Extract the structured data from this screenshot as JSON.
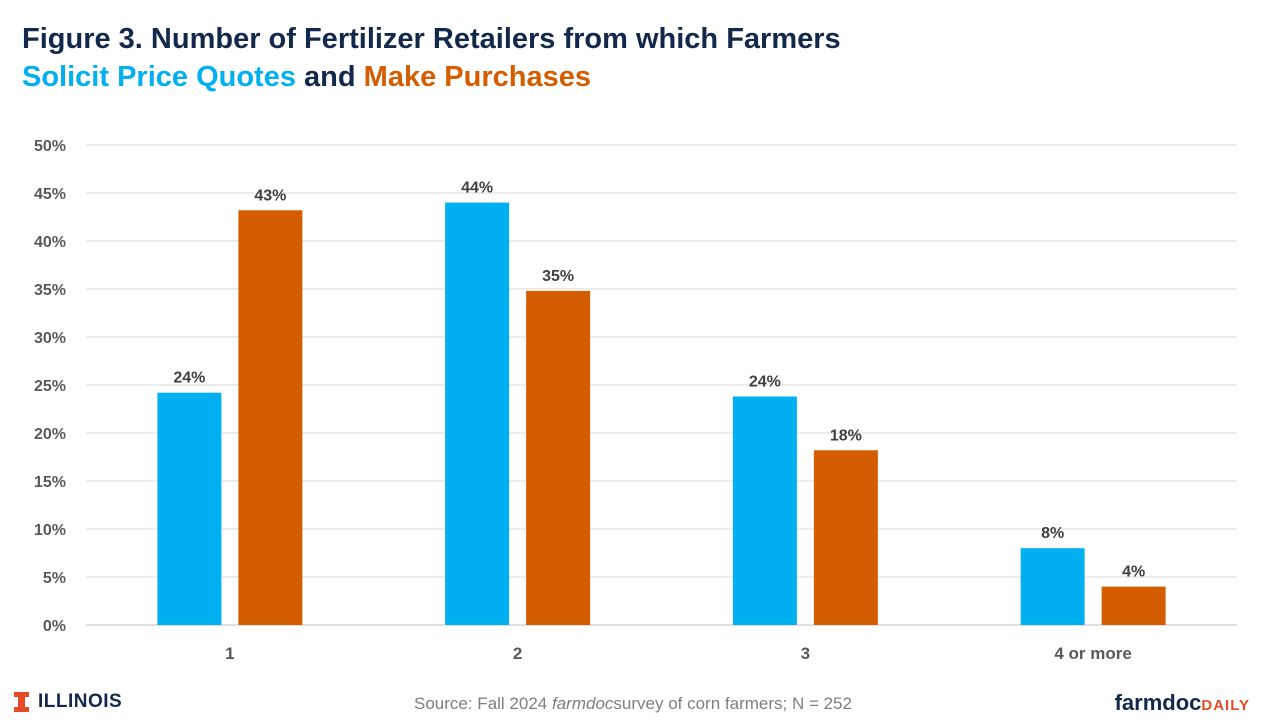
{
  "title": {
    "line1": "Figure 3. Number of Fertilizer Retailers from which Farmers",
    "part_quotes": "Solicit Price Quotes",
    "part_and": "and",
    "part_purchases": "Make Purchases"
  },
  "colors": {
    "quotes": "#00B0F0",
    "purchases": "#D45D00",
    "navy": "#13294B",
    "grid": "#D9D9D9"
  },
  "chart_data": {
    "type": "bar",
    "title": "Number of Fertilizer Retailers from which Farmers Solicit Price Quotes and Make Purchases",
    "categories": [
      "1",
      "2",
      "3",
      "4 or more"
    ],
    "series": [
      {
        "name": "Solicit Price Quotes",
        "values": [
          24.2,
          44.0,
          23.8,
          8.0
        ],
        "labels": [
          "24%",
          "44%",
          "24%",
          "8%"
        ],
        "color": "#00B0F0"
      },
      {
        "name": "Make Purchases",
        "values": [
          43.2,
          34.8,
          18.2,
          4.0
        ],
        "labels": [
          "43%",
          "35%",
          "18%",
          "4%"
        ],
        "color": "#D45D00"
      }
    ],
    "ylim": [
      0,
      50
    ],
    "yticks": [
      0,
      5,
      10,
      15,
      20,
      25,
      30,
      35,
      40,
      45,
      50
    ],
    "ytick_labels": [
      "0%",
      "5%",
      "10%",
      "15%",
      "20%",
      "25%",
      "30%",
      "35%",
      "40%",
      "45%",
      "50%"
    ],
    "xlabel": "",
    "ylabel": "",
    "grid": true
  },
  "footer": {
    "logo_text": "ILLINOIS",
    "source_prefix": "Source: Fall 2024",
    "source_italic": "farmdoc",
    "source_suffix": "survey of corn farmers; N = 252",
    "brand_main": "farmdoc",
    "brand_daily": "DAILY"
  }
}
